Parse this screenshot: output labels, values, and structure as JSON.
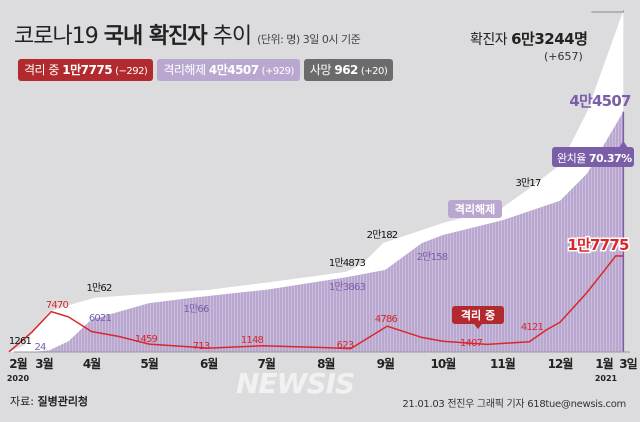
{
  "header": {
    "title_prefix": "코로나19 ",
    "title_bold": "국내 확진자",
    "title_suffix": " 추이",
    "unit_note": "(단위: 명) 3일 0시 기준"
  },
  "badges": [
    {
      "label": "격리 중",
      "value": "1만7775",
      "delta": "(−292)",
      "color": "#b22a2e"
    },
    {
      "label": "격리해제",
      "value": "4만4507",
      "delta": "(+929)",
      "color": "#b9a7cf"
    },
    {
      "label": "사망",
      "value": "962",
      "delta": "(+20)",
      "color": "#6b6b6b"
    }
  ],
  "total": {
    "label": "확진자",
    "value": "6만3244명",
    "delta": "(+657)"
  },
  "source": {
    "label": "자료:",
    "value": "질병관리청"
  },
  "credit": "21.01.03 전진우 그래픽 기자 618tue@newsis.com",
  "watermark": "NEWSIS",
  "chart_data": {
    "type": "area",
    "x_unit": "date",
    "xlim": [
      "2020-02-18",
      "2021-01-03"
    ],
    "ylim": [
      0,
      63244
    ],
    "grid": false,
    "x_ticks": [
      {
        "date": "2020-02-18",
        "label": "2월"
      },
      {
        "date": "2020-03-01",
        "label": "3월"
      },
      {
        "date": "2020-04-01",
        "label": "4월"
      },
      {
        "date": "2020-05-01",
        "label": "5월"
      },
      {
        "date": "2020-06-01",
        "label": "6월"
      },
      {
        "date": "2020-07-01",
        "label": "7월"
      },
      {
        "date": "2020-08-01",
        "label": "8월"
      },
      {
        "date": "2020-09-01",
        "label": "9월"
      },
      {
        "date": "2020-10-01",
        "label": "10월"
      },
      {
        "date": "2020-11-01",
        "label": "11월"
      },
      {
        "date": "2020-12-01",
        "label": "12월"
      },
      {
        "date": "2021-01-01",
        "label": "1월"
      },
      {
        "date": "2021-01-03",
        "label": "3일"
      }
    ],
    "year_labels": [
      {
        "date": "2020-02-18",
        "label": "2020"
      },
      {
        "date": "2021-01-01",
        "label": "2021"
      }
    ],
    "series": [
      {
        "name": "확진자",
        "color": "#ffffff",
        "points": [
          [
            "2020-02-18",
            31
          ],
          [
            "2020-02-26",
            1261
          ],
          [
            "2020-03-01",
            3736
          ],
          [
            "2020-03-10",
            7513
          ],
          [
            "2020-03-20",
            8652
          ],
          [
            "2020-04-03",
            10062
          ],
          [
            "2020-05-01",
            10774
          ],
          [
            "2020-06-01",
            11503
          ],
          [
            "2020-07-01",
            12850
          ],
          [
            "2020-08-01",
            14336
          ],
          [
            "2020-08-12",
            14873
          ],
          [
            "2020-08-20",
            16346
          ],
          [
            "2020-08-31",
            20182
          ],
          [
            "2020-10-01",
            23889
          ],
          [
            "2020-11-01",
            26732
          ],
          [
            "2020-11-14",
            30017
          ],
          [
            "2020-12-01",
            34652
          ],
          [
            "2020-12-15",
            44364
          ],
          [
            "2021-01-03",
            63244
          ]
        ]
      },
      {
        "name": "격리해제",
        "color": "#b9a7cf",
        "points": [
          [
            "2020-02-18",
            0
          ],
          [
            "2020-03-01",
            24
          ],
          [
            "2020-03-10",
            300
          ],
          [
            "2020-03-20",
            2000
          ],
          [
            "2020-04-01",
            6021
          ],
          [
            "2020-05-01",
            9059
          ],
          [
            "2020-05-24",
            10066
          ],
          [
            "2020-07-01",
            11537
          ],
          [
            "2020-08-01",
            13233
          ],
          [
            "2020-08-12",
            13863
          ],
          [
            "2020-09-01",
            15198
          ],
          [
            "2020-09-20",
            20158
          ],
          [
            "2020-10-01",
            21666
          ],
          [
            "2020-11-01",
            24395
          ],
          [
            "2020-12-01",
            28000
          ],
          [
            "2020-12-15",
            33000
          ],
          [
            "2021-01-03",
            44507
          ]
        ]
      },
      {
        "name": "격리 중",
        "color": "#d8282c",
        "points": [
          [
            "2020-02-18",
            30
          ],
          [
            "2020-03-01",
            3700
          ],
          [
            "2020-03-11",
            7470
          ],
          [
            "2020-03-20",
            6500
          ],
          [
            "2020-04-01",
            3800
          ],
          [
            "2020-04-15",
            2900
          ],
          [
            "2020-05-01",
            1459
          ],
          [
            "2020-06-01",
            713
          ],
          [
            "2020-06-29",
            1148
          ],
          [
            "2020-08-01",
            800
          ],
          [
            "2020-08-14",
            623
          ],
          [
            "2020-09-02",
            4786
          ],
          [
            "2020-09-20",
            2700
          ],
          [
            "2020-10-01",
            2000
          ],
          [
            "2020-10-24",
            1407
          ],
          [
            "2020-11-15",
            1900
          ],
          [
            "2020-11-24",
            4121
          ],
          [
            "2020-12-01",
            5500
          ],
          [
            "2020-12-15",
            11000
          ],
          [
            "2020-12-25",
            15500
          ],
          [
            "2020-12-30",
            17800
          ],
          [
            "2021-01-03",
            17775
          ]
        ]
      }
    ],
    "data_labels": [
      {
        "series": "확진자",
        "date": "2020-02-26",
        "value": "1261"
      },
      {
        "series": "확진자",
        "date": "2020-04-03",
        "value": "1만62"
      },
      {
        "series": "확진자",
        "date": "2020-08-12",
        "value": "1만4873"
      },
      {
        "series": "확진자",
        "date": "2020-08-31",
        "value": "2만182"
      },
      {
        "series": "확진자",
        "date": "2020-11-14",
        "value": "3만17"
      },
      {
        "series": "격리해제",
        "date": "2020-03-01",
        "value": "24"
      },
      {
        "series": "격리해제",
        "date": "2020-04-01",
        "value": "6021"
      },
      {
        "series": "격리해제",
        "date": "2020-05-24",
        "value": "1만66"
      },
      {
        "series": "격리해제",
        "date": "2020-08-12",
        "value": "1만3863"
      },
      {
        "series": "격리해제",
        "date": "2020-09-20",
        "value": "2만158"
      },
      {
        "series": "격리해제",
        "date": "2021-01-03",
        "value": "4만4507"
      },
      {
        "series": "격리 중",
        "date": "2020-03-11",
        "value": "7470"
      },
      {
        "series": "격리 중",
        "date": "2020-05-01",
        "value": "1459"
      },
      {
        "series": "격리 중",
        "date": "2020-06-01",
        "value": "713"
      },
      {
        "series": "격리 중",
        "date": "2020-06-29",
        "value": "1148"
      },
      {
        "series": "격리 중",
        "date": "2020-08-14",
        "value": "623"
      },
      {
        "series": "격리 중",
        "date": "2020-09-02",
        "value": "4786"
      },
      {
        "series": "격리 중",
        "date": "2020-10-24",
        "value": "1407"
      },
      {
        "series": "격리 중",
        "date": "2020-11-24",
        "value": "4121"
      },
      {
        "series": "격리 중",
        "date": "2021-01-03",
        "value": "1만7775"
      }
    ],
    "annotations": {
      "released_tag": "격리해제",
      "isolated_tag": "격리 중",
      "recovery_rate_label": "완치율",
      "recovery_rate_value": "70.37%"
    }
  }
}
